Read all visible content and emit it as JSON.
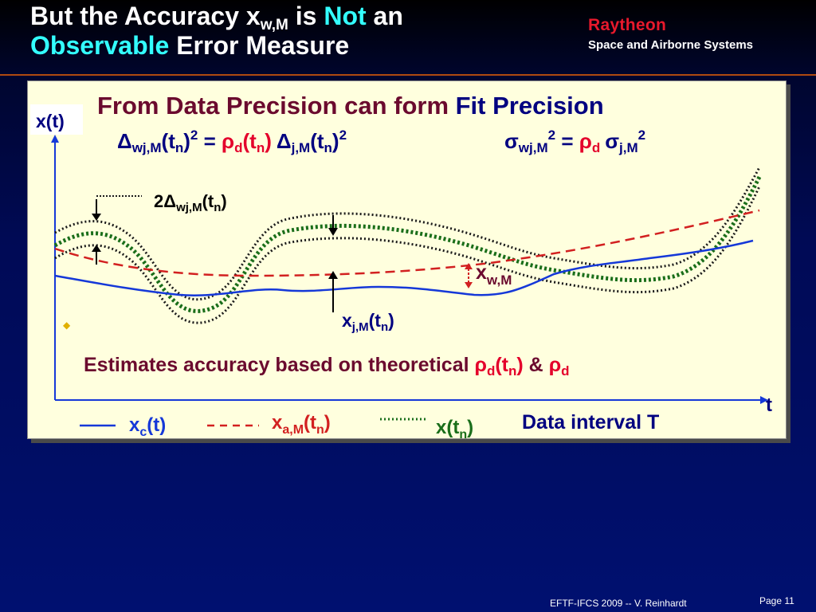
{
  "slide": {
    "title_line1_pre": "But the Accuracy x",
    "title_line1_sub": "w,M",
    "title_line1_mid": " is ",
    "title_line1_not": "Not",
    "title_line1_post": " an",
    "title_line2_obs": "Observable",
    "title_line2_post": " Error Measure",
    "logo_name": "Raytheon",
    "logo_subtitle": "Space and Airborne Systems",
    "footer_credit": "EFTF-IFCS 2009 --  V. Reinhardt",
    "footer_page": "Page 11"
  },
  "colors": {
    "title_accent": "#33ffff",
    "panel_bg": "#ffffde",
    "heading": "#6b0a2e",
    "navy": "#000080",
    "red": "#e4002b",
    "blue_curve": "#1538d8",
    "green_dots": "#1a6e1a",
    "dashed_red": "#d22020"
  },
  "panel": {
    "heading_pre": "From Data Precision can form ",
    "heading_fit": "Fit Precision",
    "formula_delta": {
      "sym_delta": "Δ",
      "sub_wjM": "wj,M",
      "t_open": "(t",
      "sub_n": "n",
      "t_close": ")",
      "sup_2": "2",
      "equals": " = ",
      "sym_rho": "ρ",
      "sub_d": "d",
      "sub_jM": "j,M"
    },
    "formula_sigma": {
      "sym_sigma": "σ",
      "sub_wjM": "wj,M",
      "sup_2": "2",
      "equals": " = ",
      "sym_rho": "ρ",
      "sub_d": "d",
      "sub_jM": "j,M"
    },
    "y_axis_label": "x(t)",
    "x_axis_label": "t",
    "band_label": {
      "pre": "2Δ",
      "sub": "wj,M",
      "mid": "(t",
      "sub_n": "n",
      "post": ")"
    },
    "accuracy_label": {
      "pre": "x",
      "sub": "w,M"
    },
    "jm_label": {
      "pre": "x",
      "sub": "j,M",
      "mid": "(t",
      "sub_n": "n",
      "post": ")"
    },
    "estimate_text": {
      "pre": "Estimates accuracy based on theoretical ",
      "rho": "ρ",
      "sub_d": "d",
      "t_open": "(t",
      "sub_n": "n",
      "t_close": ")",
      "amp": " & "
    },
    "legend": {
      "xc": {
        "pre": "x",
        "sub": "c",
        "post": "(t)"
      },
      "xa": {
        "pre": "x",
        "sub": "a,M",
        "mid": "(t",
        "sub_n": "n",
        "post": ")"
      },
      "xt": {
        "pre": "x(t",
        "sub_n": "n",
        "post": ")"
      },
      "interval": "Data interval T"
    }
  }
}
